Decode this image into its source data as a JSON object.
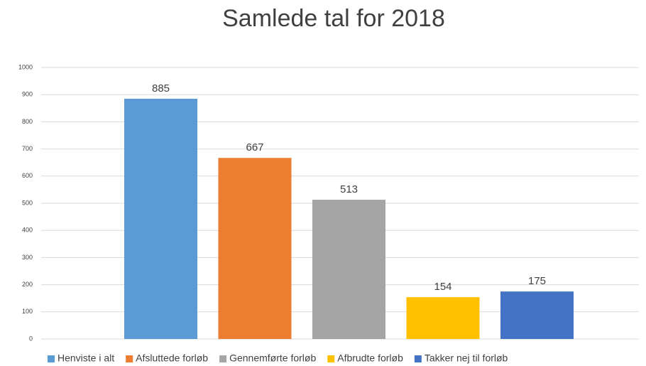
{
  "chart_data": {
    "type": "bar",
    "title": "Samlede tal for 2018",
    "categories": [
      null
    ],
    "series": [
      {
        "name": "Henviste i alt",
        "color": "#5b9bd5",
        "values": [
          885
        ]
      },
      {
        "name": "Afsluttede forløb",
        "color": "#ed7d31",
        "values": [
          667
        ]
      },
      {
        "name": "Gennemførte forløb",
        "color": "#a5a5a5",
        "values": [
          513
        ]
      },
      {
        "name": "Afbrudte forløb",
        "color": "#ffc000",
        "values": [
          154
        ]
      },
      {
        "name": "Takker nej til forløb",
        "color": "#4472c4",
        "values": [
          175
        ]
      }
    ],
    "ylim": [
      0,
      1000
    ],
    "yticks": [
      0,
      100,
      200,
      300,
      400,
      500,
      600,
      700,
      800,
      900,
      1000
    ],
    "grid": true,
    "legend": "bottom",
    "data_labels": true
  }
}
